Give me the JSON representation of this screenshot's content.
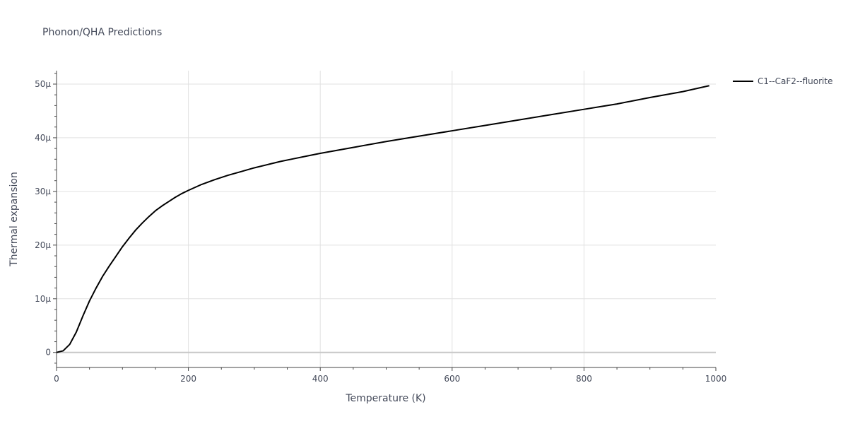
{
  "chart_data": {
    "type": "line",
    "title": "Phonon/QHA Predictions",
    "xlabel": "Temperature (K)",
    "ylabel": "Thermal expansion",
    "xlim": [
      0,
      1000
    ],
    "ylim": [
      -2.8e-06,
      5.25e-05
    ],
    "x_ticks": [
      0,
      200,
      400,
      600,
      800,
      1000
    ],
    "x_tick_labels": [
      "0",
      "200",
      "400",
      "600",
      "800",
      "1000"
    ],
    "y_ticks": [
      0,
      1e-05,
      2e-05,
      3e-05,
      4e-05,
      5e-05
    ],
    "y_tick_labels": [
      "0",
      "10µ",
      "20µ",
      "30µ",
      "40µ",
      "50µ"
    ],
    "grid": true,
    "legend_position": "top-right outside",
    "series": [
      {
        "name": "C1--CaF2--fluorite",
        "color": "#000000",
        "x": [
          0,
          10,
          20,
          30,
          40,
          50,
          60,
          70,
          80,
          90,
          100,
          110,
          120,
          130,
          140,
          150,
          160,
          170,
          180,
          190,
          200,
          220,
          240,
          260,
          280,
          300,
          320,
          340,
          360,
          380,
          400,
          450,
          500,
          550,
          600,
          650,
          700,
          750,
          800,
          830,
          850,
          900,
          950,
          990
        ],
        "y": [
          0,
          3e-07,
          1.5e-06,
          3.8e-06,
          6.8e-06,
          9.6e-06,
          1.2e-05,
          1.42e-05,
          1.61e-05,
          1.79e-05,
          1.97e-05,
          2.13e-05,
          2.28e-05,
          2.41e-05,
          2.53e-05,
          2.64e-05,
          2.73e-05,
          2.81e-05,
          2.89e-05,
          2.96e-05,
          3.02e-05,
          3.13e-05,
          3.22e-05,
          3.3e-05,
          3.37e-05,
          3.44e-05,
          3.5e-05,
          3.56e-05,
          3.61e-05,
          3.66e-05,
          3.71e-05,
          3.82e-05,
          3.93e-05,
          4.03e-05,
          4.13e-05,
          4.23e-05,
          4.33e-05,
          4.43e-05,
          4.53e-05,
          4.59e-05,
          4.63e-05,
          4.75e-05,
          4.86e-05,
          4.97e-05
        ]
      }
    ]
  }
}
